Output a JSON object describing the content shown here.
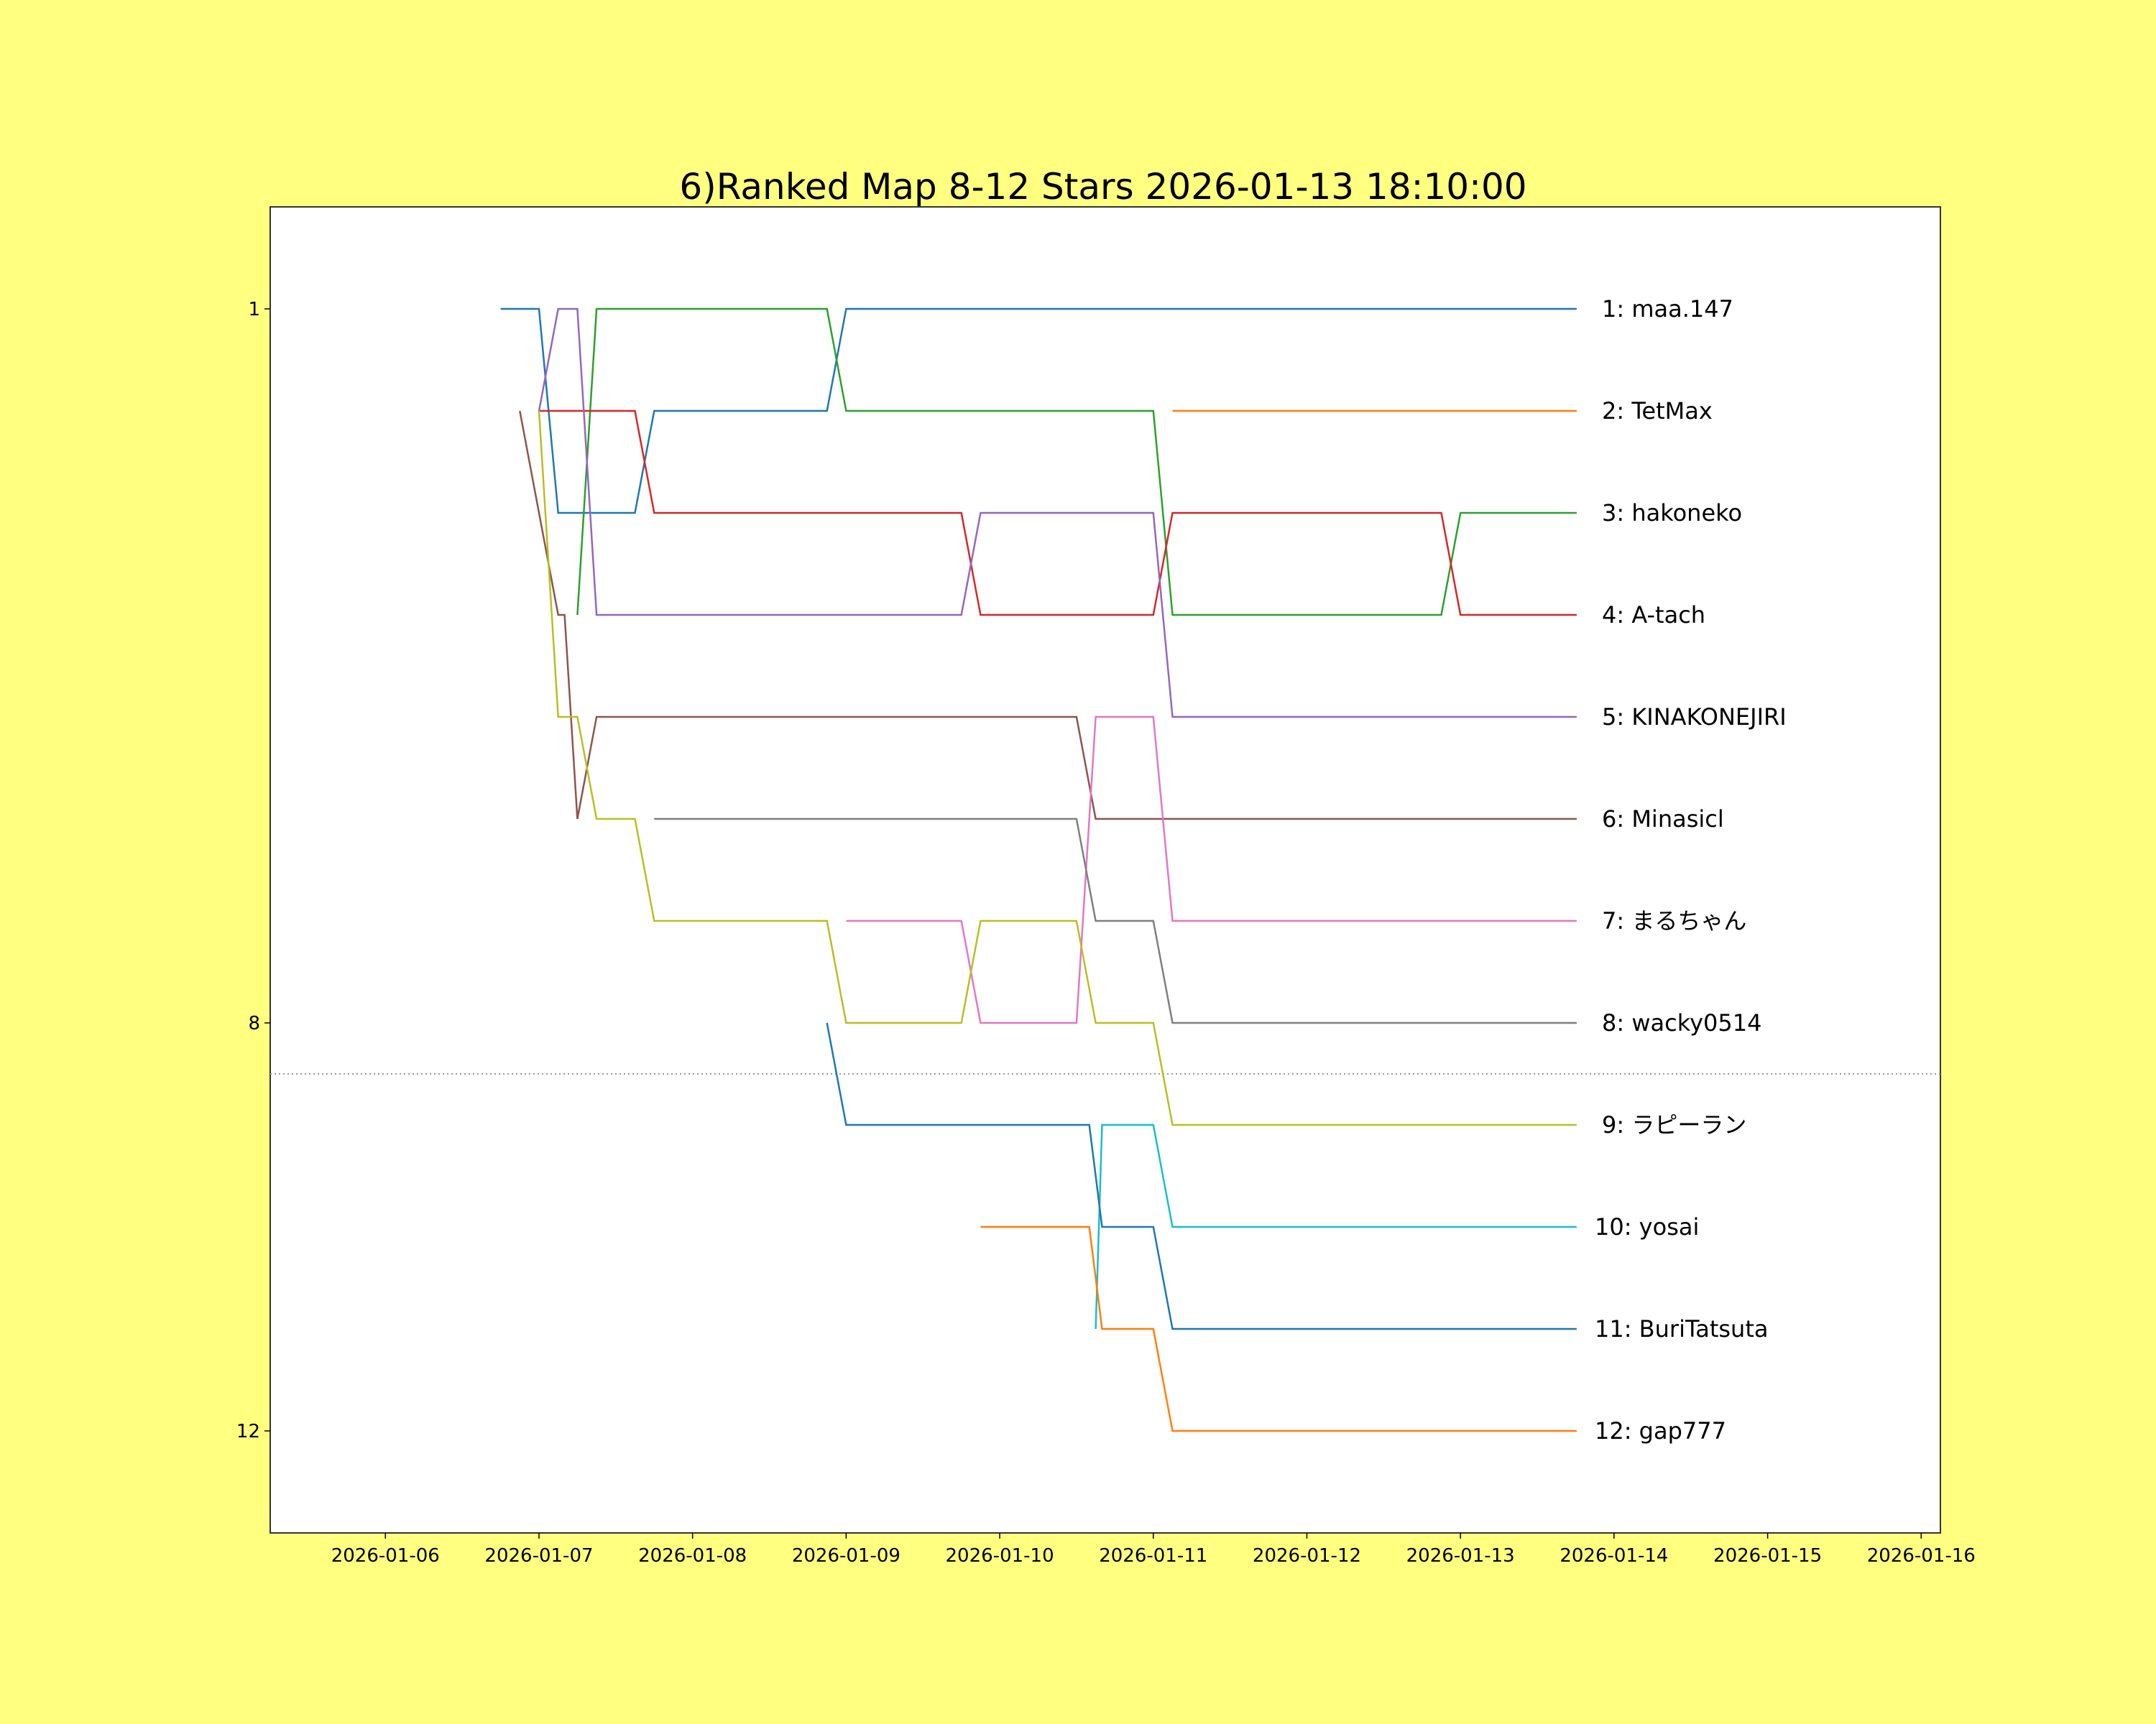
{
  "chart_data": {
    "type": "line",
    "title": "6)Ranked Map 8-12 Stars 2026-01-13 18:10:00",
    "xlabel": "",
    "ylabel": "",
    "x_axis": {
      "kind": "date",
      "range": [
        "2026-01-05 06:00",
        "2026-01-16 03:00"
      ],
      "tick_labels": [
        "2026-01-06",
        "2026-01-07",
        "2026-01-08",
        "2026-01-09",
        "2026-01-10",
        "2026-01-11",
        "2026-01-12",
        "2026-01-13",
        "2026-01-14",
        "2026-01-15",
        "2026-01-16"
      ]
    },
    "y_axis": {
      "inverted": true,
      "range": [
        0,
        13
      ],
      "ticks": [
        1,
        8,
        12
      ]
    },
    "cutoff_line": {
      "rank": 8.5,
      "style": "dotted",
      "color": "#999999"
    },
    "grid": false,
    "series": [
      {
        "label": "1: maa.147",
        "color": "#1f77b4",
        "points": [
          [
            "2026-01-06 18:00",
            1
          ],
          [
            "2026-01-07 00:00",
            1
          ],
          [
            "2026-01-07 03:00",
            3
          ],
          [
            "2026-01-07 15:00",
            3
          ],
          [
            "2026-01-07 18:00",
            2
          ],
          [
            "2026-01-08 21:00",
            2
          ],
          [
            "2026-01-09 00:00",
            1
          ],
          [
            "2026-01-13 18:10",
            1
          ]
        ]
      },
      {
        "label": "2: TetMax",
        "color": "#ff7f0e",
        "points": [
          [
            "2026-01-11 03:00",
            2
          ],
          [
            "2026-01-13 18:10",
            2
          ]
        ]
      },
      {
        "label": "3: hakoneko",
        "color": "#2ca02c",
        "points": [
          [
            "2026-01-07 06:00",
            4
          ],
          [
            "2026-01-07 09:00",
            1
          ],
          [
            "2026-01-08 21:00",
            1
          ],
          [
            "2026-01-09 00:00",
            2
          ],
          [
            "2026-01-11 00:00",
            2
          ],
          [
            "2026-01-11 03:00",
            4
          ],
          [
            "2026-01-12 21:00",
            4
          ],
          [
            "2026-01-13 00:00",
            3
          ],
          [
            "2026-01-13 18:10",
            3
          ]
        ]
      },
      {
        "label": "4: A-tach",
        "color": "#d62728",
        "points": [
          [
            "2026-01-07 00:00",
            2
          ],
          [
            "2026-01-07 15:00",
            2
          ],
          [
            "2026-01-07 18:00",
            3
          ],
          [
            "2026-01-09 18:00",
            3
          ],
          [
            "2026-01-09 21:00",
            4
          ],
          [
            "2026-01-11 00:00",
            4
          ],
          [
            "2026-01-11 03:00",
            3
          ],
          [
            "2026-01-12 21:00",
            3
          ],
          [
            "2026-01-13 00:00",
            4
          ],
          [
            "2026-01-13 18:10",
            4
          ]
        ]
      },
      {
        "label": "5: KINAKONEJIRI",
        "color": "#9467bd",
        "points": [
          [
            "2026-01-07 00:00",
            2
          ],
          [
            "2026-01-07 03:00",
            1
          ],
          [
            "2026-01-07 06:00",
            1
          ],
          [
            "2026-01-07 09:00",
            4
          ],
          [
            "2026-01-09 18:00",
            4
          ],
          [
            "2026-01-09 21:00",
            3
          ],
          [
            "2026-01-11 00:00",
            3
          ],
          [
            "2026-01-11 03:00",
            5
          ],
          [
            "2026-01-13 18:10",
            5
          ]
        ]
      },
      {
        "label": "6: Minasicl",
        "color": "#8c564b",
        "points": [
          [
            "2026-01-06 21:00",
            2
          ],
          [
            "2026-01-07 03:00",
            4
          ],
          [
            "2026-01-07 04:00",
            4
          ],
          [
            "2026-01-07 06:00",
            6
          ],
          [
            "2026-01-07 09:00",
            5
          ],
          [
            "2026-01-10 12:00",
            5
          ],
          [
            "2026-01-10 15:00",
            6
          ],
          [
            "2026-01-13 18:10",
            6
          ]
        ]
      },
      {
        "label": "7: まるちゃん",
        "color": "#e377c2",
        "points": [
          [
            "2026-01-09 00:00",
            7
          ],
          [
            "2026-01-09 18:00",
            7
          ],
          [
            "2026-01-09 21:00",
            8
          ],
          [
            "2026-01-10 12:00",
            8
          ],
          [
            "2026-01-10 15:00",
            5
          ],
          [
            "2026-01-11 00:00",
            5
          ],
          [
            "2026-01-11 03:00",
            7
          ],
          [
            "2026-01-13 18:10",
            7
          ]
        ]
      },
      {
        "label": "8: wacky0514",
        "color": "#7f7f7f",
        "points": [
          [
            "2026-01-07 18:00",
            6
          ],
          [
            "2026-01-10 12:00",
            6
          ],
          [
            "2026-01-10 15:00",
            7
          ],
          [
            "2026-01-11 00:00",
            7
          ],
          [
            "2026-01-11 03:00",
            8
          ],
          [
            "2026-01-13 18:10",
            8
          ]
        ]
      },
      {
        "label": "9: ラピーラン",
        "color": "#bcbd22",
        "points": [
          [
            "2026-01-07 00:00",
            2
          ],
          [
            "2026-01-07 03:00",
            5
          ],
          [
            "2026-01-07 06:00",
            5
          ],
          [
            "2026-01-07 09:00",
            6
          ],
          [
            "2026-01-07 15:00",
            6
          ],
          [
            "2026-01-07 18:00",
            7
          ],
          [
            "2026-01-08 21:00",
            7
          ],
          [
            "2026-01-09 00:00",
            8
          ],
          [
            "2026-01-09 18:00",
            8
          ],
          [
            "2026-01-09 21:00",
            7
          ],
          [
            "2026-01-10 12:00",
            7
          ],
          [
            "2026-01-10 15:00",
            8
          ],
          [
            "2026-01-11 00:00",
            8
          ],
          [
            "2026-01-11 03:00",
            9
          ],
          [
            "2026-01-13 18:10",
            9
          ]
        ]
      },
      {
        "label": "10: yosai",
        "color": "#17becf",
        "points": [
          [
            "2026-01-10 15:00",
            11
          ],
          [
            "2026-01-10 16:00",
            9
          ],
          [
            "2026-01-11 00:00",
            9
          ],
          [
            "2026-01-11 03:00",
            10
          ],
          [
            "2026-01-13 18:10",
            10
          ]
        ]
      },
      {
        "label": "11: BuriTatsuta",
        "color": "#1f77b4",
        "points": [
          [
            "2026-01-08 21:00",
            8
          ],
          [
            "2026-01-09 00:00",
            9
          ],
          [
            "2026-01-10 14:00",
            9
          ],
          [
            "2026-01-10 16:00",
            10
          ],
          [
            "2026-01-11 00:00",
            10
          ],
          [
            "2026-01-11 03:00",
            11
          ],
          [
            "2026-01-13 18:10",
            11
          ]
        ]
      },
      {
        "label": "12: gap777",
        "color": "#ff7f0e",
        "points": [
          [
            "2026-01-09 21:00",
            10
          ],
          [
            "2026-01-10 14:00",
            10
          ],
          [
            "2026-01-10 16:00",
            11
          ],
          [
            "2026-01-11 00:00",
            11
          ],
          [
            "2026-01-11 03:00",
            12
          ],
          [
            "2026-01-13 18:10",
            12
          ]
        ]
      }
    ]
  }
}
